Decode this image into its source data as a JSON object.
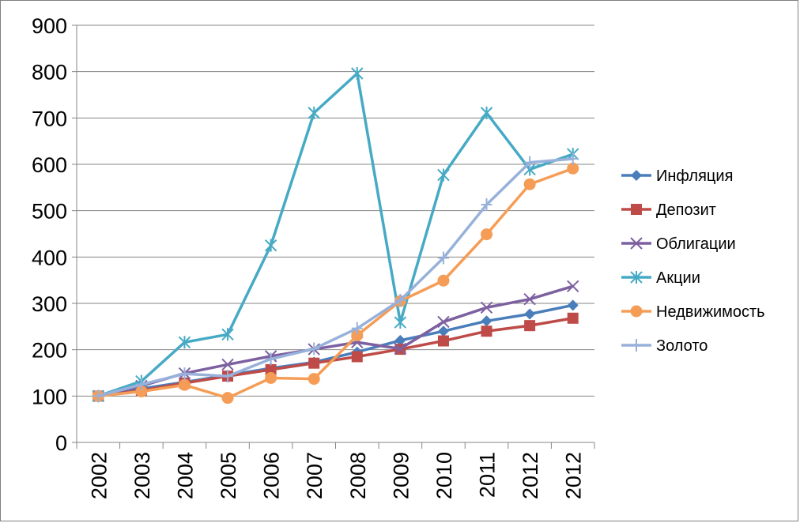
{
  "chart_data": {
    "type": "line",
    "categories": [
      "2002",
      "2003",
      "2004",
      "2005",
      "2006",
      "2007",
      "2008",
      "2009",
      "2010",
      "2011",
      "2012",
      "2012"
    ],
    "ylim": [
      0,
      900
    ],
    "yticks": [
      0,
      100,
      200,
      300,
      400,
      500,
      600,
      700,
      800,
      900
    ],
    "grid": "horizontal",
    "legend_position": "right",
    "series": [
      {
        "name": "Инфляция",
        "color": "#4A7EBB",
        "marker": "diamond",
        "values": [
          100,
          116,
          130,
          145,
          160,
          173,
          195,
          220,
          240,
          262,
          277,
          296
        ]
      },
      {
        "name": "Депозит",
        "color": "#BE4B48",
        "marker": "square",
        "values": [
          100,
          112,
          128,
          143,
          157,
          171,
          185,
          201,
          219,
          240,
          252,
          268
        ]
      },
      {
        "name": "Облигации",
        "color": "#7D60A0",
        "marker": "x",
        "values": [
          100,
          122,
          149,
          168,
          186,
          201,
          216,
          202,
          260,
          291,
          309,
          337
        ]
      },
      {
        "name": "Акции",
        "color": "#46AAC5",
        "marker": "asterisk",
        "values": [
          100,
          132,
          216,
          233,
          425,
          711,
          796,
          259,
          577,
          711,
          589,
          622
        ]
      },
      {
        "name": "Недвижимость",
        "color": "#F59D56",
        "marker": "circle",
        "values": [
          100,
          110,
          124,
          96,
          139,
          137,
          231,
          305,
          349,
          449,
          557,
          591
        ]
      },
      {
        "name": "Золото",
        "color": "#98B1DA",
        "marker": "plus",
        "values": [
          100,
          125,
          148,
          143,
          180,
          202,
          246,
          307,
          398,
          513,
          604,
          612
        ]
      }
    ]
  }
}
